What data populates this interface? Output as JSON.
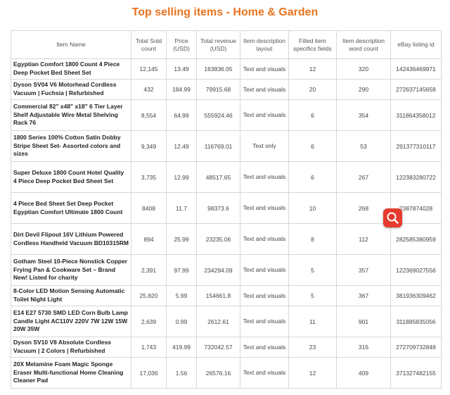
{
  "title": "Top selling items - Home & Garden",
  "icons": {
    "zoom": "magnifier-icon",
    "zoom_color": "#e63b2e"
  },
  "colors": {
    "title": "#e8731e",
    "border": "#d7d7d7"
  },
  "chart_data": {
    "type": "table",
    "title": "Top selling items - Home & Garden",
    "columns": [
      "Item Name",
      "Total Sold count",
      "Price (USD)",
      "Total revenue (USD)",
      "Item description layout",
      "Filled item specifics fields",
      "Item description word count",
      "eBay listing id"
    ],
    "rows": [
      [
        "Egyptian Comfort 1800 Count 4 Piece Deep Pocket Bed Sheet Set",
        "12,145",
        "13.49",
        "163836.05",
        "Text and visuals",
        "12",
        "320",
        "142436469971"
      ],
      [
        "Dyson SV04 V6 Motorhead Cordless Vacuum | Fuchsia | Refurbished",
        "432",
        "184.99",
        "79915.68",
        "Text and visuals",
        "20",
        "290",
        "272637145658"
      ],
      [
        "Commercial 82\" x48\" x18\" 6 Tier Layer Shelf Adjustable Wire Metal Shelving Rack 76",
        "8,554",
        "64.99",
        "555924.46",
        "Text and visuals",
        "6",
        "354",
        "311864358012"
      ],
      [
        "1800 Series 100% Cotton Satin Dobby Stripe Sheet Set- Assorted colors and sizes",
        "9,349",
        "12.49",
        "116769.01",
        "Text only",
        "6",
        "53",
        "291377310117"
      ],
      [
        "Super Deluxe 1800 Count Hotel Quality 4 Piece Deep Pocket Bed Sheet Set",
        "3,735",
        "12.99",
        "48517.65",
        "Text and visuals",
        "6",
        "267",
        "122383280722"
      ],
      [
        "4 Piece Bed Sheet Set Deep Pocket Egyptian Comfort Ultimate 1800 Count",
        "8408",
        "11.7",
        "98373.6",
        "Text and visuals",
        "10",
        "268",
        "2387874028"
      ],
      [
        "Dirt Devil Flipout 16V Lithium Powered Cordless Handheld Vacuum BD10315RM",
        "894",
        "25.99",
        "23235.06",
        "Text and visuals",
        "8",
        "112",
        "282585380959"
      ],
      [
        "Gotham Steel 10-Piece Nonstick Copper Frying Pan & Cookware Set – Brand New! Listed for charity",
        "2,391",
        "97.99",
        "234294.09",
        "Text and visuals",
        "5",
        "357",
        "122369027556"
      ],
      [
        "8-Color LED Motion Sensing Automatic Toilet Night Light",
        "25,820",
        "5.99",
        "154661.8",
        "Text and visuals",
        "5",
        "367",
        "381936309462"
      ],
      [
        "E14 E27 5730 SMD LED Corn Bulb Lamp Candle Light AC110V 220V 7W 12W 15W 20W 35W",
        "2,639",
        "0.99",
        "2612.61",
        "Text and visuals",
        "11",
        "901",
        "311885835056"
      ],
      [
        "Dyson SV10 V8 Absolute Cordless Vacuum | 2 Colors | Refurbished",
        "1,743",
        "419.99",
        "732042.57",
        "Text and visuals",
        "23",
        "316",
        "272709732848"
      ],
      [
        "20X Melamine Foam Magic Sponge Eraser Multi-functional Home Cleaning Cleaner Pad",
        "17,036",
        "1.56",
        "26576.16",
        "Text and visuals",
        "12",
        "409",
        "371327482155"
      ]
    ]
  }
}
